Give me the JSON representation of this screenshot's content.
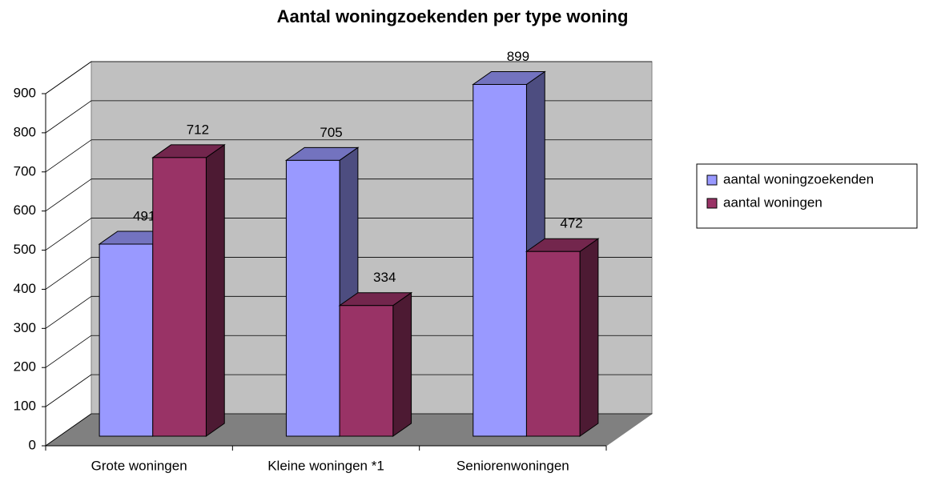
{
  "chart_data": {
    "type": "bar3d",
    "title": "Aantal woningzoekenden per type woning",
    "categories": [
      "Grote woningen",
      "Kleine woningen *1",
      "Seniorenwoningen"
    ],
    "series": [
      {
        "name": "aantal woningzoekenden",
        "color": "#9999ff",
        "values": [
          491,
          705,
          899
        ]
      },
      {
        "name": "aantal woningen",
        "color": "#993366",
        "values": [
          712,
          334,
          472
        ]
      }
    ],
    "ylim": [
      0,
      900
    ],
    "yticks": [
      0,
      100,
      200,
      300,
      400,
      500,
      600,
      700,
      800,
      900
    ],
    "grid": true,
    "legend": "right",
    "data_labels": true
  }
}
